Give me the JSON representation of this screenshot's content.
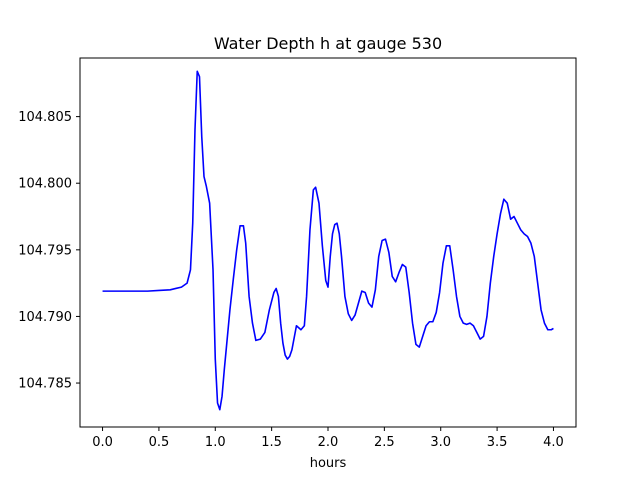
{
  "chart_data": {
    "type": "line",
    "title": "Water Depth h at gauge 530",
    "xlabel": "hours",
    "ylabel": "",
    "xlim": [
      -0.2,
      4.2
    ],
    "ylim": [
      104.7817,
      104.8094
    ],
    "xticks": [
      0.0,
      0.5,
      1.0,
      1.5,
      2.0,
      2.5,
      3.0,
      3.5,
      4.0
    ],
    "xtick_labels": [
      "0.0",
      "0.5",
      "1.0",
      "1.5",
      "2.0",
      "2.5",
      "3.0",
      "3.5",
      "4.0"
    ],
    "yticks": [
      104.785,
      104.79,
      104.795,
      104.8,
      104.805
    ],
    "ytick_labels": [
      "104.785",
      "104.790",
      "104.795",
      "104.800",
      "104.805"
    ],
    "grid": false,
    "series": [
      {
        "color": "#0000ff",
        "x": [
          0.0,
          0.1,
          0.2,
          0.3,
          0.4,
          0.5,
          0.6,
          0.65,
          0.7,
          0.75,
          0.78,
          0.8,
          0.82,
          0.84,
          0.86,
          0.88,
          0.9,
          0.92,
          0.95,
          0.98,
          1.0,
          1.02,
          1.04,
          1.06,
          1.08,
          1.1,
          1.13,
          1.16,
          1.19,
          1.22,
          1.25,
          1.27,
          1.3,
          1.33,
          1.36,
          1.4,
          1.44,
          1.48,
          1.52,
          1.54,
          1.56,
          1.58,
          1.6,
          1.62,
          1.64,
          1.66,
          1.68,
          1.72,
          1.76,
          1.79,
          1.81,
          1.84,
          1.87,
          1.89,
          1.92,
          1.95,
          1.98,
          2.0,
          2.02,
          2.04,
          2.06,
          2.08,
          2.1,
          2.12,
          2.15,
          2.18,
          2.21,
          2.24,
          2.27,
          2.3,
          2.33,
          2.36,
          2.39,
          2.42,
          2.45,
          2.48,
          2.51,
          2.54,
          2.57,
          2.6,
          2.63,
          2.66,
          2.69,
          2.72,
          2.75,
          2.78,
          2.81,
          2.84,
          2.87,
          2.9,
          2.93,
          2.96,
          2.99,
          3.02,
          3.05,
          3.08,
          3.11,
          3.14,
          3.17,
          3.2,
          3.23,
          3.26,
          3.29,
          3.32,
          3.35,
          3.38,
          3.41,
          3.44,
          3.47,
          3.5,
          3.53,
          3.56,
          3.59,
          3.62,
          3.65,
          3.68,
          3.71,
          3.74,
          3.77,
          3.8,
          3.83,
          3.86,
          3.89,
          3.92,
          3.95,
          3.98,
          4.0
        ],
        "y": [
          104.7919,
          104.7919,
          104.7919,
          104.7919,
          104.7919,
          104.79195,
          104.792,
          104.7921,
          104.7922,
          104.7925,
          104.7935,
          104.797,
          104.804,
          104.8084,
          104.808,
          104.8035,
          104.8005,
          104.7998,
          104.7985,
          104.7935,
          104.7868,
          104.7835,
          104.783,
          104.784,
          104.786,
          104.7878,
          104.7905,
          104.7928,
          104.795,
          104.7968,
          104.7968,
          104.7955,
          104.7915,
          104.7895,
          104.7882,
          104.7883,
          104.7888,
          104.7905,
          104.7918,
          104.7921,
          104.7915,
          104.7895,
          104.788,
          104.7871,
          104.7868,
          104.787,
          104.7875,
          104.7893,
          104.789,
          104.7893,
          104.7915,
          104.7965,
          104.7995,
          104.7997,
          104.7985,
          104.7953,
          104.7927,
          104.7922,
          104.7945,
          104.7962,
          104.7969,
          104.797,
          104.7962,
          104.7945,
          104.7915,
          104.7902,
          104.7897,
          104.7901,
          104.791,
          104.7919,
          104.7918,
          104.791,
          104.7907,
          104.792,
          104.7945,
          104.7957,
          104.7958,
          104.7948,
          104.793,
          104.7926,
          104.7933,
          104.7939,
          104.7937,
          104.7918,
          104.7895,
          104.7879,
          104.7877,
          104.7885,
          104.7893,
          104.7896,
          104.7896,
          104.7903,
          104.7918,
          104.794,
          104.7953,
          104.7953,
          104.7935,
          104.7915,
          104.79,
          104.7895,
          104.7894,
          104.7895,
          104.7893,
          104.7888,
          104.7883,
          104.7885,
          104.79,
          104.7925,
          104.7945,
          104.7962,
          104.7977,
          104.7988,
          104.7985,
          104.7973,
          104.7975,
          104.797,
          104.7965,
          104.7962,
          104.796,
          104.7955,
          104.7945,
          104.7925,
          104.7905,
          104.7895,
          104.789,
          104.789,
          104.7891
        ]
      }
    ]
  }
}
